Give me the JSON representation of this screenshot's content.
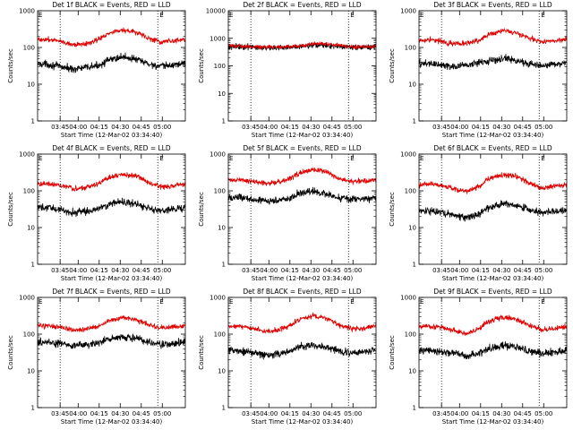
{
  "chart_data": [
    {
      "type": "line",
      "title": "Det 1f BLACK = Events, RED = LLD",
      "xlabel": "Start Time (12-Mar-02 03:34:40)",
      "ylabel": "Counts/sec",
      "yscale": "log",
      "ylim": [
        1,
        1000
      ],
      "xlim": [
        36,
        95
      ],
      "x_ticks": [
        "03:45",
        "04:00",
        "04:15",
        "04:30",
        "04:45",
        "05:00"
      ],
      "y_ticks": [
        "1",
        "10",
        "100",
        "1000"
      ],
      "vlines": [
        45,
        84
      ],
      "markers": [
        "E",
        "E"
      ],
      "series": [
        {
          "name": "Events",
          "color": "#000000",
          "x": [
            36,
            40,
            45,
            50,
            55,
            60,
            65,
            70,
            75,
            80,
            85,
            90,
            95
          ],
          "y": [
            36,
            35,
            30,
            26,
            28,
            32,
            46,
            56,
            48,
            36,
            30,
            33,
            38
          ]
        },
        {
          "name": "LLD",
          "color": "#e00000",
          "x": [
            36,
            40,
            45,
            50,
            55,
            60,
            65,
            70,
            75,
            80,
            85,
            90,
            95
          ],
          "y": [
            165,
            165,
            150,
            120,
            125,
            160,
            250,
            300,
            260,
            180,
            140,
            145,
            170
          ]
        }
      ]
    },
    {
      "type": "line",
      "title": "Det 2f BLACK = Events, RED = LLD",
      "xlabel": "Start Time (12-Mar-02 03:34:40)",
      "ylabel": "Counts/sec",
      "yscale": "log",
      "ylim": [
        1,
        10000
      ],
      "xlim": [
        36,
        95
      ],
      "x_ticks": [
        "03:45",
        "04:00",
        "04:15",
        "04:30",
        "04:45",
        "05:00"
      ],
      "y_ticks": [
        "1",
        "10",
        "100",
        "1000",
        "10000"
      ],
      "vlines": [
        45,
        84
      ],
      "markers": [
        "E",
        "E"
      ],
      "series": [
        {
          "name": "Events",
          "color": "#000000",
          "x": [
            36,
            45,
            55,
            65,
            70,
            75,
            85,
            95
          ],
          "y": [
            500,
            480,
            450,
            480,
            560,
            540,
            470,
            480
          ]
        },
        {
          "name": "LLD",
          "color": "#e00000",
          "x": [
            36,
            45,
            55,
            65,
            70,
            75,
            85,
            95
          ],
          "y": [
            530,
            500,
            470,
            520,
            650,
            620,
            490,
            500
          ]
        }
      ]
    },
    {
      "type": "line",
      "title": "Det 3f BLACK = Events, RED = LLD",
      "xlabel": "Start Time (12-Mar-02 03:34:40)",
      "ylabel": "Counts/sec",
      "yscale": "log",
      "ylim": [
        1,
        1000
      ],
      "xlim": [
        36,
        95
      ],
      "x_ticks": [
        "03:45",
        "04:00",
        "04:15",
        "04:30",
        "04:45",
        "05:00"
      ],
      "y_ticks": [
        "1",
        "10",
        "100",
        "1000"
      ],
      "vlines": [
        45,
        84
      ],
      "markers": [
        "E",
        "E"
      ],
      "series": [
        {
          "name": "Events",
          "color": "#000000",
          "x": [
            36,
            40,
            45,
            50,
            55,
            60,
            65,
            70,
            75,
            80,
            85,
            90,
            95
          ],
          "y": [
            36,
            37,
            33,
            30,
            33,
            38,
            45,
            50,
            44,
            36,
            32,
            35,
            38
          ]
        },
        {
          "name": "LLD",
          "color": "#e00000",
          "x": [
            36,
            40,
            45,
            50,
            55,
            60,
            65,
            70,
            75,
            80,
            85,
            90,
            95
          ],
          "y": [
            160,
            165,
            145,
            125,
            130,
            155,
            240,
            290,
            250,
            180,
            145,
            150,
            170
          ]
        }
      ]
    },
    {
      "type": "line",
      "title": "Det 4f BLACK = Events, RED = LLD",
      "xlabel": "Start Time (12-Mar-02 03:34:40)",
      "ylabel": "Counts/sec",
      "yscale": "log",
      "ylim": [
        1,
        1000
      ],
      "xlim": [
        36,
        95
      ],
      "x_ticks": [
        "03:45",
        "04:00",
        "04:15",
        "04:30",
        "04:45",
        "05:00"
      ],
      "y_ticks": [
        "1",
        "10",
        "100",
        "1000"
      ],
      "vlines": [
        45,
        84
      ],
      "markers": [
        "E",
        "E"
      ],
      "series": [
        {
          "name": "Events",
          "color": "#000000",
          "x": [
            36,
            40,
            45,
            50,
            55,
            60,
            65,
            70,
            75,
            80,
            85,
            90,
            95
          ],
          "y": [
            35,
            34,
            30,
            26,
            27,
            32,
            45,
            50,
            44,
            34,
            29,
            31,
            35
          ]
        },
        {
          "name": "LLD",
          "color": "#e00000",
          "x": [
            36,
            40,
            45,
            50,
            55,
            60,
            65,
            70,
            75,
            80,
            85,
            90,
            95
          ],
          "y": [
            155,
            155,
            140,
            115,
            120,
            150,
            240,
            280,
            250,
            170,
            130,
            135,
            150
          ]
        }
      ]
    },
    {
      "type": "line",
      "title": "Det 5f BLACK = Events, RED = LLD",
      "xlabel": "Start Time (12-Mar-02 03:34:40)",
      "ylabel": "Counts/sec",
      "yscale": "log",
      "ylim": [
        1,
        1000
      ],
      "xlim": [
        36,
        95
      ],
      "x_ticks": [
        "03:45",
        "04:00",
        "04:15",
        "04:30",
        "04:45",
        "05:00"
      ],
      "y_ticks": [
        "1",
        "10",
        "100",
        "1000"
      ],
      "vlines": [
        45,
        84
      ],
      "markers": [
        "E",
        "E"
      ],
      "series": [
        {
          "name": "Events",
          "color": "#000000",
          "x": [
            36,
            40,
            45,
            50,
            55,
            60,
            65,
            70,
            75,
            80,
            85,
            90,
            95
          ],
          "y": [
            68,
            66,
            60,
            52,
            55,
            62,
            85,
            95,
            85,
            66,
            58,
            60,
            66
          ]
        },
        {
          "name": "LLD",
          "color": "#e00000",
          "x": [
            36,
            40,
            45,
            50,
            55,
            60,
            65,
            70,
            75,
            80,
            85,
            90,
            95
          ],
          "y": [
            200,
            200,
            180,
            160,
            170,
            200,
            320,
            380,
            330,
            220,
            180,
            185,
            200
          ]
        }
      ]
    },
    {
      "type": "line",
      "title": "Det 6f BLACK = Events, RED = LLD",
      "xlabel": "Start Time (12-Mar-02 03:34:40)",
      "ylabel": "Counts/sec",
      "yscale": "log",
      "ylim": [
        1,
        1000
      ],
      "xlim": [
        36,
        95
      ],
      "x_ticks": [
        "03:45",
        "04:00",
        "04:15",
        "04:30",
        "04:45",
        "05:00"
      ],
      "y_ticks": [
        "1",
        "10",
        "100",
        "1000"
      ],
      "vlines": [
        45,
        84
      ],
      "markers": [
        "E",
        "E"
      ],
      "series": [
        {
          "name": "Events",
          "color": "#000000",
          "x": [
            36,
            40,
            45,
            50,
            55,
            60,
            65,
            70,
            75,
            80,
            85,
            90,
            95
          ],
          "y": [
            28,
            28,
            25,
            22,
            18,
            24,
            36,
            45,
            40,
            30,
            26,
            27,
            30
          ]
        },
        {
          "name": "LLD",
          "color": "#e00000",
          "x": [
            36,
            40,
            45,
            50,
            55,
            60,
            65,
            70,
            75,
            80,
            85,
            90,
            95
          ],
          "y": [
            150,
            150,
            140,
            115,
            95,
            130,
            230,
            280,
            240,
            160,
            120,
            130,
            150
          ]
        }
      ]
    },
    {
      "type": "line",
      "title": "Det 7f BLACK = Events, RED = LLD",
      "xlabel": "Start Time (12-Mar-02 03:34:40)",
      "ylabel": "Counts/sec",
      "yscale": "log",
      "ylim": [
        1,
        1000
      ],
      "xlim": [
        36,
        95
      ],
      "x_ticks": [
        "03:45",
        "04:00",
        "04:15",
        "04:30",
        "04:45",
        "05:00"
      ],
      "y_ticks": [
        "1",
        "10",
        "100",
        "1000"
      ],
      "vlines": [
        45,
        84
      ],
      "markers": [
        "E",
        "E"
      ],
      "series": [
        {
          "name": "Events",
          "color": "#000000",
          "x": [
            36,
            40,
            45,
            50,
            55,
            60,
            65,
            70,
            75,
            80,
            85,
            90,
            95
          ],
          "y": [
            60,
            60,
            55,
            48,
            50,
            56,
            75,
            85,
            75,
            60,
            52,
            55,
            60
          ]
        },
        {
          "name": "LLD",
          "color": "#e00000",
          "x": [
            36,
            40,
            45,
            50,
            55,
            60,
            65,
            70,
            75,
            80,
            85,
            90,
            95
          ],
          "y": [
            170,
            170,
            155,
            130,
            135,
            160,
            240,
            280,
            250,
            180,
            150,
            155,
            170
          ]
        }
      ]
    },
    {
      "type": "line",
      "title": "Det 8f BLACK = Events, RED = LLD",
      "xlabel": "Start Time (12-Mar-02 03:34:40)",
      "ylabel": "Counts/sec",
      "yscale": "log",
      "ylim": [
        1,
        1000
      ],
      "xlim": [
        36,
        95
      ],
      "x_ticks": [
        "03:45",
        "04:00",
        "04:15",
        "04:30",
        "04:45",
        "05:00"
      ],
      "y_ticks": [
        "1",
        "10",
        "100",
        "1000"
      ],
      "vlines": [
        45,
        84
      ],
      "markers": [
        "E",
        "E"
      ],
      "series": [
        {
          "name": "Events",
          "color": "#000000",
          "x": [
            36,
            40,
            45,
            50,
            55,
            60,
            65,
            70,
            75,
            80,
            85,
            90,
            95
          ],
          "y": [
            36,
            36,
            32,
            27,
            28,
            33,
            45,
            52,
            45,
            35,
            30,
            33,
            36
          ]
        },
        {
          "name": "LLD",
          "color": "#e00000",
          "x": [
            36,
            40,
            45,
            50,
            55,
            60,
            65,
            70,
            75,
            80,
            85,
            90,
            95
          ],
          "y": [
            165,
            165,
            150,
            120,
            125,
            160,
            260,
            320,
            270,
            180,
            140,
            145,
            165
          ]
        }
      ]
    },
    {
      "type": "line",
      "title": "Det 9f BLACK = Events, RED = LLD",
      "xlabel": "Start Time (12-Mar-02 03:34:40)",
      "ylabel": "Counts/sec",
      "yscale": "log",
      "ylim": [
        1,
        1000
      ],
      "xlim": [
        36,
        95
      ],
      "x_ticks": [
        "03:45",
        "04:00",
        "04:15",
        "04:30",
        "04:45",
        "05:00"
      ],
      "y_ticks": [
        "1",
        "10",
        "100",
        "1000"
      ],
      "vlines": [
        45,
        84
      ],
      "markers": [
        "E",
        "E"
      ],
      "series": [
        {
          "name": "Events",
          "color": "#000000",
          "x": [
            36,
            40,
            45,
            50,
            55,
            60,
            65,
            70,
            75,
            80,
            85,
            90,
            95
          ],
          "y": [
            36,
            36,
            33,
            30,
            25,
            30,
            42,
            50,
            44,
            34,
            30,
            32,
            36
          ]
        },
        {
          "name": "LLD",
          "color": "#e00000",
          "x": [
            36,
            40,
            45,
            50,
            55,
            60,
            65,
            70,
            75,
            80,
            85,
            90,
            95
          ],
          "y": [
            160,
            160,
            150,
            125,
            100,
            140,
            240,
            290,
            250,
            170,
            130,
            140,
            160
          ]
        }
      ]
    }
  ]
}
